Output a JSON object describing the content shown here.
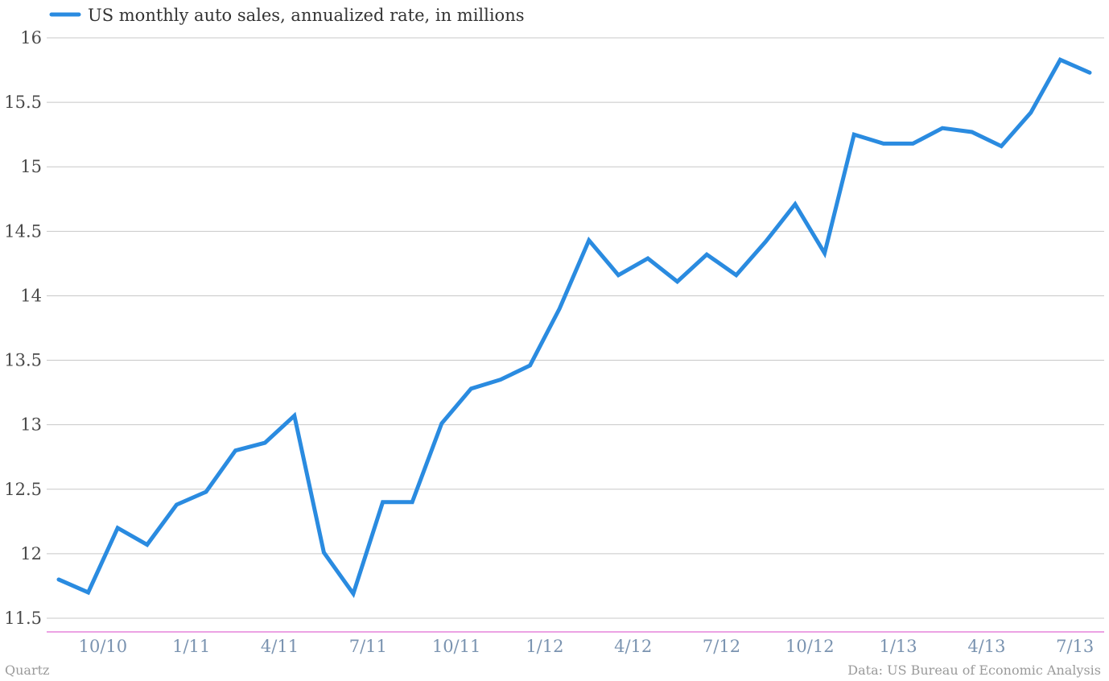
{
  "chart_data": {
    "type": "line",
    "title": "",
    "xlabel": "",
    "ylabel": "",
    "ylim": [
      11.5,
      16
    ],
    "y_ticks": [
      "11.5",
      "12",
      "12.5",
      "13",
      "13.5",
      "14",
      "14.5",
      "15",
      "15.5",
      "16"
    ],
    "y_tick_values": [
      11.5,
      12,
      12.5,
      13,
      13.5,
      14,
      14.5,
      15,
      15.5,
      16
    ],
    "x_tick_labels": [
      "10/10",
      "1/11",
      "4/11",
      "7/11",
      "10/11",
      "1/12",
      "4/12",
      "7/12",
      "10/12",
      "1/13",
      "4/13",
      "7/13"
    ],
    "x_tick_indices": [
      1.5,
      4.5,
      7.5,
      10.5,
      13.5,
      16.5,
      19.5,
      22.5,
      25.5,
      28.5,
      31.5,
      34.5
    ],
    "grid": "horizontal",
    "legend_position": "top-left",
    "colors": {
      "series": "#2a8be0",
      "grid": "#c8c8c8",
      "baseline": "#d946c8"
    },
    "series": [
      {
        "name": "US monthly auto sales, annualized rate, in millions",
        "values": [
          11.8,
          11.7,
          12.2,
          12.07,
          12.38,
          12.48,
          12.8,
          12.86,
          13.07,
          12.01,
          11.69,
          12.4,
          12.4,
          13.01,
          13.28,
          13.35,
          13.46,
          13.9,
          14.43,
          14.16,
          14.29,
          14.11,
          14.32,
          14.16,
          14.42,
          14.71,
          14.33,
          15.25,
          15.18,
          15.18,
          15.3,
          15.27,
          15.16,
          15.42,
          15.83,
          15.73
        ]
      }
    ]
  },
  "footer": {
    "source_left": "Quartz",
    "source_right": "Data: US Bureau of Economic Analysis"
  }
}
